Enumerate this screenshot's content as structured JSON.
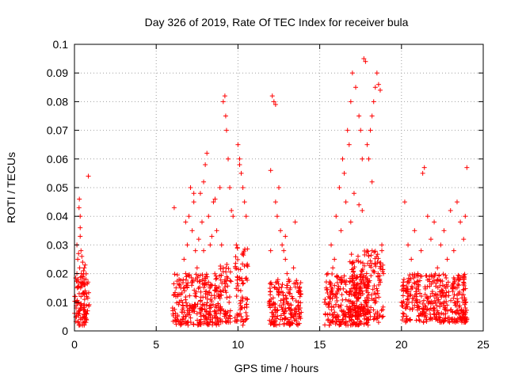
{
  "chart_data": {
    "type": "scatter",
    "title": "Day 326 of 2019, Rate Of TEC Index for receiver bula",
    "xlabel": "GPS time / hours",
    "ylabel": "ROTI / TECUs",
    "xlim": [
      0,
      25
    ],
    "ylim": [
      0,
      0.1
    ],
    "x_ticks": [
      0,
      5,
      10,
      15,
      20,
      25
    ],
    "x_tick_labels": [
      "0",
      "5",
      "10",
      "15",
      "20",
      "25"
    ],
    "y_ticks": [
      0,
      0.01,
      0.02,
      0.03,
      0.04,
      0.05,
      0.06,
      0.07,
      0.08,
      0.09,
      0.1
    ],
    "y_tick_labels": [
      "0",
      "0.01",
      "0.02",
      "0.03",
      "0.04",
      "0.05",
      "0.06",
      "0.07",
      "0.08",
      "0.09",
      "0.1"
    ],
    "grid": true,
    "marker": "plus",
    "color": "#ff0000",
    "series": [
      {
        "x": [
          0.05,
          0.1,
          0.12,
          0.15,
          0.18,
          0.2,
          0.22,
          0.25,
          0.28,
          0.3,
          0.32,
          0.35,
          0.35,
          0.38,
          0.4,
          0.4,
          0.42,
          0.45,
          0.48,
          0.5,
          0.5,
          0.52,
          0.55,
          0.58,
          0.6,
          0.62,
          0.65,
          0.7,
          0.75,
          0.8,
          0.85,
          0.2,
          0.3,
          0.4,
          0.5,
          0.6,
          0.7,
          0.15,
          0.25,
          0.45,
          0.55,
          0.65,
          0.35,
          0.75,
          6.0,
          6.2,
          6.4,
          6.5,
          6.7,
          6.8,
          6.9,
          7.0,
          7.1,
          7.2,
          7.3,
          7.4,
          7.5,
          7.6,
          7.7,
          7.8,
          7.9,
          8.0,
          8.1,
          8.2,
          8.3,
          8.5,
          8.7,
          8.9,
          9.0,
          9.1,
          9.2,
          9.25,
          9.3,
          9.4,
          9.5,
          9.7,
          9.9,
          10.0,
          10.1,
          10.2,
          10.3,
          10.4,
          10.5,
          6.3,
          6.6,
          7.5,
          7.7,
          8.0,
          8.1,
          9.2,
          9.3,
          10.2,
          10.3,
          10.5,
          6.1,
          6.8,
          7.3,
          8.4,
          9.6,
          10.1,
          7.9,
          8.6,
          11.9,
          12.0,
          12.1,
          12.2,
          12.3,
          12.4,
          12.5,
          12.6,
          12.7,
          12.8,
          12.9,
          13.0,
          13.1,
          13.2,
          13.3,
          13.4,
          13.5,
          13.7,
          13.8,
          12.1,
          12.2,
          12.0,
          12.6,
          12.8,
          13.1,
          13.4,
          12.3,
          12.9,
          15.3,
          15.5,
          15.7,
          15.9,
          16.0,
          16.2,
          16.4,
          16.5,
          16.6,
          16.7,
          16.8,
          16.9,
          17.0,
          17.2,
          17.4,
          17.5,
          17.6,
          17.7,
          17.8,
          17.9,
          18.0,
          18.1,
          18.2,
          18.3,
          18.4,
          18.5,
          18.6,
          18.7,
          18.8,
          18.9,
          16.1,
          16.4,
          16.5,
          16.6,
          16.8,
          17.3,
          17.5,
          17.9,
          18.1,
          18.3,
          18.4,
          18.5,
          18.6,
          15.4,
          15.8,
          16.3,
          17.1,
          17.6,
          18.2,
          18.8,
          16.9,
          17.4,
          20.0,
          20.2,
          20.4,
          20.6,
          20.8,
          21.0,
          21.2,
          21.3,
          21.4,
          21.6,
          21.8,
          22.0,
          22.2,
          22.4,
          22.6,
          22.8,
          23.0,
          23.2,
          23.4,
          23.6,
          23.8,
          23.9,
          24.0,
          20.1,
          20.5,
          21.3,
          21.35,
          21.4,
          22.1,
          22.7,
          23.3,
          23.7,
          24.0,
          20.3,
          20.9,
          21.7,
          22.5,
          23.1,
          23.5
        ],
        "y": [
          0.012,
          0.008,
          0.005,
          0.02,
          0.015,
          0.025,
          0.018,
          0.01,
          0.043,
          0.046,
          0.022,
          0.04,
          0.036,
          0.015,
          0.028,
          0.012,
          0.02,
          0.008,
          0.017,
          0.024,
          0.013,
          0.019,
          0.009,
          0.016,
          0.022,
          0.011,
          0.014,
          0.018,
          0.012,
          0.007,
          0.054,
          0.003,
          0.006,
          0.004,
          0.002,
          0.005,
          0.003,
          0.03,
          0.027,
          0.026,
          0.021,
          0.023,
          0.033,
          0.006,
          0.008,
          0.012,
          0.018,
          0.015,
          0.025,
          0.02,
          0.03,
          0.04,
          0.05,
          0.035,
          0.045,
          0.028,
          0.022,
          0.032,
          0.048,
          0.038,
          0.052,
          0.058,
          0.062,
          0.04,
          0.03,
          0.045,
          0.035,
          0.05,
          0.03,
          0.08,
          0.082,
          0.075,
          0.07,
          0.06,
          0.05,
          0.04,
          0.03,
          0.065,
          0.06,
          0.055,
          0.05,
          0.045,
          0.04,
          0.005,
          0.004,
          0.006,
          0.003,
          0.005,
          0.004,
          0.006,
          0.003,
          0.005,
          0.002,
          0.004,
          0.043,
          0.038,
          0.048,
          0.033,
          0.042,
          0.058,
          0.028,
          0.046,
          0.01,
          0.056,
          0.082,
          0.08,
          0.045,
          0.04,
          0.05,
          0.035,
          0.03,
          0.028,
          0.025,
          0.02,
          0.018,
          0.015,
          0.012,
          0.022,
          0.038,
          0.01,
          0.008,
          0.005,
          0.003,
          0.028,
          0.004,
          0.006,
          0.003,
          0.005,
          0.079,
          0.033,
          0.01,
          0.02,
          0.03,
          0.025,
          0.04,
          0.05,
          0.06,
          0.055,
          0.045,
          0.07,
          0.065,
          0.08,
          0.09,
          0.085,
          0.075,
          0.07,
          0.06,
          0.095,
          0.094,
          0.065,
          0.06,
          0.07,
          0.075,
          0.08,
          0.085,
          0.09,
          0.086,
          0.084,
          0.03,
          0.02,
          0.005,
          0.004,
          0.006,
          0.003,
          0.005,
          0.004,
          0.006,
          0.003,
          0.005,
          0.004,
          0.006,
          0.005,
          0.003,
          0.015,
          0.022,
          0.035,
          0.048,
          0.042,
          0.052,
          0.028,
          0.038,
          0.044,
          0.01,
          0.045,
          0.03,
          0.025,
          0.035,
          0.02,
          0.028,
          0.055,
          0.057,
          0.04,
          0.032,
          0.038,
          0.022,
          0.03,
          0.035,
          0.025,
          0.042,
          0.028,
          0.045,
          0.038,
          0.032,
          0.04,
          0.057,
          0.005,
          0.004,
          0.006,
          0.003,
          0.005,
          0.004,
          0.006,
          0.003,
          0.005,
          0.004,
          0.015,
          0.012,
          0.018,
          0.014,
          0.016,
          0.013
        ]
      }
    ],
    "density_fill": [
      {
        "x": [
          0.0,
          0.9
        ],
        "y": [
          0.002,
          0.02
        ]
      },
      {
        "x": [
          6.0,
          8.9
        ],
        "y": [
          0.002,
          0.02
        ]
      },
      {
        "x": [
          8.9,
          9.6
        ],
        "y": [
          0.003,
          0.025
        ]
      },
      {
        "x": [
          9.8,
          10.6
        ],
        "y": [
          0.003,
          0.03
        ]
      },
      {
        "x": [
          11.9,
          13.9
        ],
        "y": [
          0.002,
          0.018
        ]
      },
      {
        "x": [
          15.3,
          18.0
        ],
        "y": [
          0.002,
          0.02
        ]
      },
      {
        "x": [
          16.8,
          18.9
        ],
        "y": [
          0.004,
          0.028
        ]
      },
      {
        "x": [
          20.0,
          24.0
        ],
        "y": [
          0.003,
          0.02
        ]
      }
    ]
  }
}
